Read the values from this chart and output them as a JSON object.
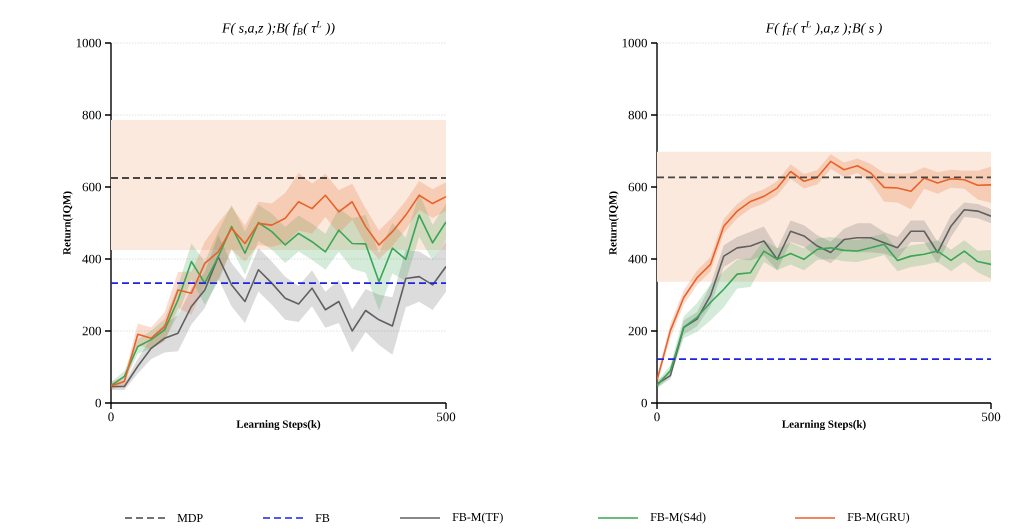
{
  "chart_data": [
    {
      "type": "line",
      "title": "F( s,a,z );B( f$_{B}$( τ$^{L}$ ))",
      "xlabel": "Learning Steps(k)",
      "ylabel": "Return(IQM)",
      "xlim": [
        0,
        500
      ],
      "ylim": [
        0,
        1000
      ],
      "xticks": [
        0,
        500
      ],
      "yticks": [
        0,
        200,
        400,
        600,
        800,
        1000
      ],
      "grid": "y",
      "legend": "bottom",
      "x": [
        0,
        20,
        40,
        60,
        80,
        100,
        120,
        140,
        160,
        180,
        200,
        220,
        240,
        260,
        280,
        300,
        320,
        340,
        360,
        380,
        400,
        420,
        440,
        460,
        480,
        500
      ],
      "ref_lines": [
        {
          "axis": "y",
          "value": 625,
          "label": "MDP",
          "color": "#4a4540",
          "line_style": "dashed"
        },
        {
          "axis": "y",
          "value": 333,
          "label": "FB",
          "color": "#1f22e6",
          "line_style": "dashed"
        }
      ],
      "bands": [
        {
          "axis": "y",
          "from": 425,
          "to": 786,
          "color": "#fbe9dd"
        }
      ],
      "series": [
        {
          "name": "FB-M(TF)",
          "color": "#606060",
          "values": [
            46,
            46,
            102,
            152,
            180,
            194,
            268,
            314,
            406,
            328,
            282,
            370,
            333,
            291,
            275,
            319,
            259,
            282,
            200,
            257,
            231,
            214,
            346,
            351,
            328,
            379
          ],
          "lower": [
            36,
            36,
            82,
            122,
            140,
            144,
            218,
            264,
            346,
            268,
            222,
            310,
            273,
            231,
            225,
            269,
            209,
            222,
            140,
            197,
            161,
            134,
            266,
            281,
            258,
            309
          ],
          "upper": [
            56,
            56,
            122,
            182,
            220,
            244,
            318,
            364,
            466,
            388,
            342,
            430,
            393,
            351,
            325,
            369,
            309,
            342,
            260,
            317,
            301,
            294,
            426,
            421,
            398,
            449
          ]
        },
        {
          "name": "FB-M(S4d)",
          "color": "#3aa655",
          "values": [
            48,
            74,
            157,
            176,
            203,
            286,
            393,
            333,
            406,
            490,
            416,
            501,
            476,
            439,
            471,
            448,
            420,
            480,
            443,
            442,
            337,
            430,
            399,
            522,
            445,
            503
          ],
          "lower": [
            38,
            59,
            137,
            151,
            173,
            246,
            343,
            273,
            336,
            430,
            356,
            451,
            426,
            389,
            421,
            398,
            370,
            420,
            373,
            362,
            257,
            360,
            339,
            462,
            395,
            453
          ],
          "upper": [
            58,
            89,
            177,
            201,
            233,
            326,
            443,
            393,
            476,
            550,
            476,
            551,
            526,
            489,
            521,
            498,
            470,
            540,
            513,
            522,
            417,
            500,
            459,
            582,
            495,
            553
          ]
        },
        {
          "name": "FB-M(GRU)",
          "color": "#e8622a",
          "values": [
            48,
            60,
            191,
            180,
            212,
            314,
            305,
            388,
            420,
            485,
            443,
            499,
            494,
            513,
            559,
            540,
            577,
            531,
            559,
            490,
            439,
            476,
            522,
            577,
            554,
            573
          ],
          "lower": [
            38,
            45,
            161,
            150,
            172,
            264,
            245,
            328,
            340,
            425,
            393,
            439,
            434,
            443,
            479,
            470,
            517,
            471,
            509,
            440,
            399,
            436,
            482,
            537,
            514,
            533
          ],
          "upper": [
            58,
            75,
            221,
            210,
            252,
            364,
            365,
            448,
            500,
            545,
            493,
            559,
            554,
            583,
            639,
            610,
            637,
            591,
            609,
            540,
            479,
            516,
            562,
            617,
            594,
            613
          ]
        }
      ]
    },
    {
      "type": "line",
      "title": "F( f$_{F}$( τ$^{L}$ ),a,z );B( s )",
      "xlabel": "Learning Steps(k)",
      "ylabel": "Return(IQM)",
      "xlim": [
        0,
        500
      ],
      "ylim": [
        0,
        1000
      ],
      "xticks": [
        0,
        500
      ],
      "yticks": [
        0,
        200,
        400,
        600,
        800,
        1000
      ],
      "grid": "y",
      "x": [
        0,
        20,
        40,
        60,
        80,
        100,
        120,
        140,
        160,
        180,
        200,
        220,
        240,
        260,
        280,
        300,
        320,
        340,
        360,
        380,
        400,
        420,
        440,
        460,
        480,
        500
      ],
      "ref_lines": [
        {
          "axis": "y",
          "value": 627,
          "color": "#4a4540",
          "line_style": "dashed"
        },
        {
          "axis": "y",
          "value": 122,
          "color": "#1f22e6",
          "line_style": "dashed"
        }
      ],
      "bands": [
        {
          "axis": "y",
          "from": 337,
          "to": 698,
          "color": "#fbe9dd"
        }
      ],
      "series": [
        {
          "color": "#606060",
          "values": [
            53,
            76,
            210,
            233,
            298,
            408,
            431,
            436,
            450,
            399,
            477,
            464,
            436,
            418,
            454,
            459,
            459,
            445,
            431,
            477,
            477,
            418,
            491,
            537,
            533,
            519
          ],
          "lower": [
            43,
            66,
            190,
            213,
            268,
            378,
            401,
            396,
            410,
            369,
            447,
            434,
            406,
            388,
            424,
            419,
            419,
            415,
            401,
            447,
            447,
            388,
            461,
            517,
            513,
            499
          ],
          "upper": [
            63,
            86,
            230,
            253,
            328,
            438,
            461,
            476,
            490,
            429,
            507,
            494,
            466,
            448,
            484,
            499,
            499,
            475,
            461,
            507,
            507,
            448,
            521,
            557,
            553,
            539
          ]
        },
        {
          "color": "#3aa655",
          "values": [
            49,
            90,
            210,
            238,
            279,
            316,
            358,
            362,
            422,
            399,
            415,
            399,
            427,
            431,
            424,
            422,
            431,
            441,
            396,
            408,
            413,
            422,
            396,
            422,
            393,
            385
          ],
          "lower": [
            39,
            75,
            180,
            198,
            229,
            266,
            318,
            322,
            392,
            369,
            385,
            369,
            397,
            401,
            394,
            392,
            401,
            411,
            366,
            378,
            383,
            392,
            366,
            392,
            363,
            345
          ],
          "upper": [
            59,
            105,
            240,
            278,
            329,
            366,
            398,
            402,
            452,
            429,
            445,
            429,
            457,
            461,
            454,
            452,
            461,
            471,
            426,
            438,
            443,
            452,
            426,
            452,
            423,
            425
          ]
        },
        {
          "color": "#e8622a",
          "values": [
            63,
            201,
            293,
            348,
            385,
            491,
            533,
            560,
            574,
            597,
            643,
            616,
            627,
            671,
            648,
            659,
            639,
            599,
            597,
            588,
            625,
            611,
            623,
            620,
            605,
            606
          ],
          "lower": [
            53,
            181,
            273,
            328,
            365,
            471,
            513,
            540,
            554,
            577,
            623,
            596,
            607,
            651,
            628,
            639,
            614,
            559,
            557,
            538,
            595,
            581,
            598,
            595,
            565,
            556
          ],
          "upper": [
            73,
            221,
            313,
            368,
            405,
            511,
            553,
            580,
            594,
            617,
            663,
            636,
            647,
            691,
            668,
            679,
            664,
            639,
            637,
            638,
            655,
            641,
            648,
            645,
            645,
            656
          ]
        }
      ]
    }
  ]
}
